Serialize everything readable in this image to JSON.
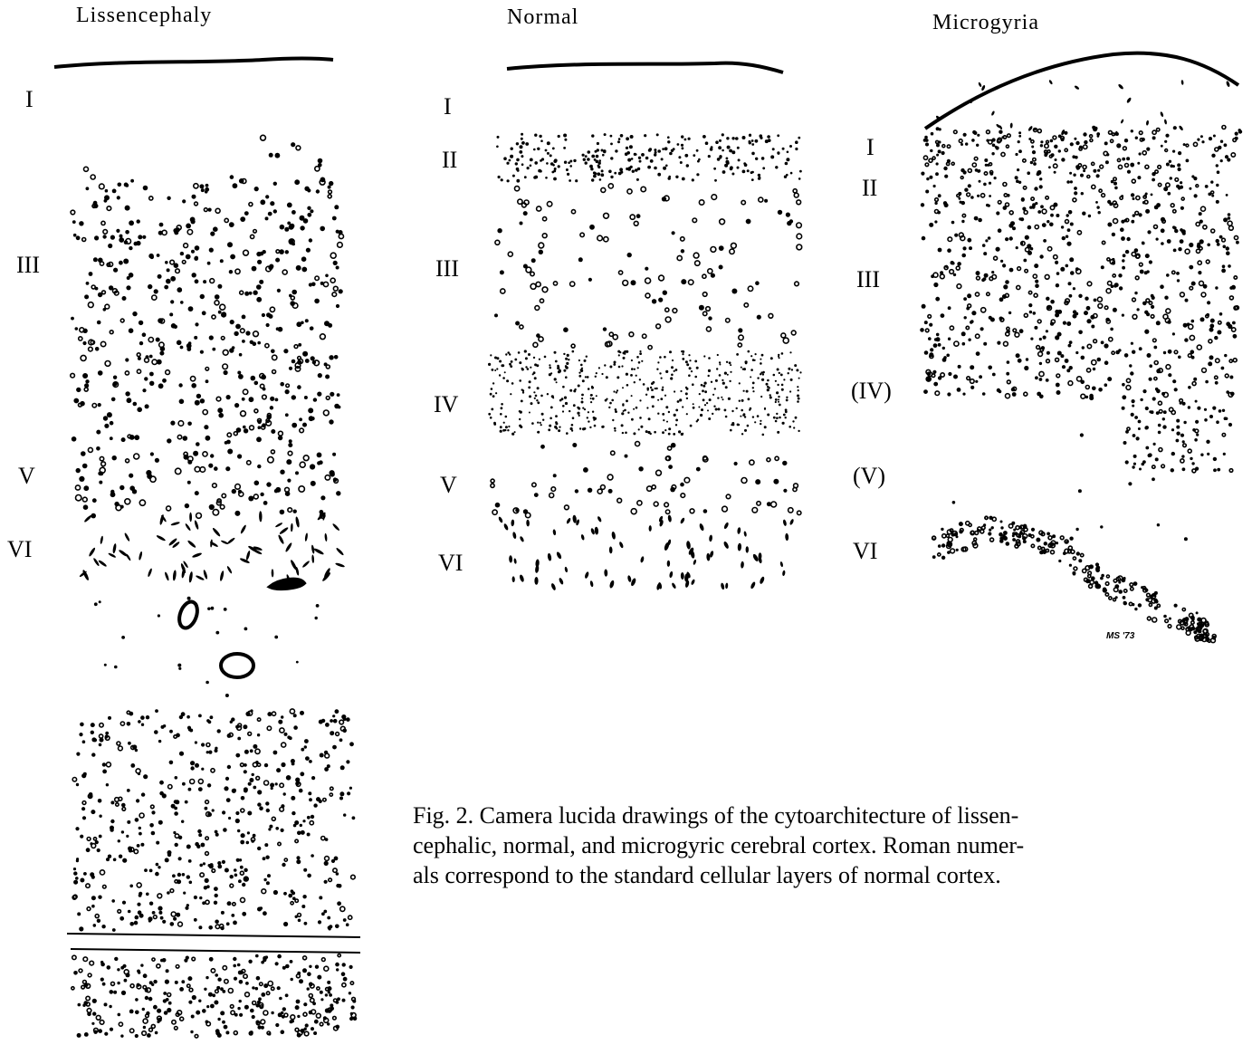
{
  "panels": {
    "lissencephaly": {
      "title": "Lissencephaly",
      "layers": [
        "I",
        "III",
        "V",
        "VI"
      ]
    },
    "normal": {
      "title": "Normal",
      "layers": [
        "I",
        "II",
        "III",
        "IV",
        "V",
        "VI"
      ]
    },
    "microgyria": {
      "title": "Microgyria",
      "layers": [
        "I",
        "II",
        "III",
        "(IV)",
        "(V)",
        "VI"
      ]
    }
  },
  "signature": "MS '73",
  "caption": {
    "lines": [
      "Fig. 2. Camera lucida drawings of the cytoarchitecture of lissen-",
      "cephalic, normal, and microgyric cerebral cortex. Roman numer-",
      "als correspond to the standard cellular layers of normal cortex."
    ]
  }
}
